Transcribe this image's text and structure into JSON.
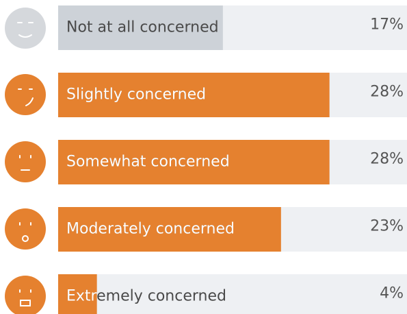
{
  "chart_data": {
    "type": "bar",
    "categories": [
      "Not at all concerned",
      "Slightly concerned",
      "Somewhat concerned",
      "Moderately concerned",
      "Extremely concerned"
    ],
    "values": [
      17,
      28,
      28,
      23,
      4
    ],
    "value_labels": [
      "17%",
      "28%",
      "28%",
      "23%",
      "4%"
    ],
    "colors": [
      "#cdd2d8",
      "#e5812f",
      "#e5812f",
      "#e5812f",
      "#e5812f"
    ],
    "xlim": [
      0,
      36
    ]
  }
}
